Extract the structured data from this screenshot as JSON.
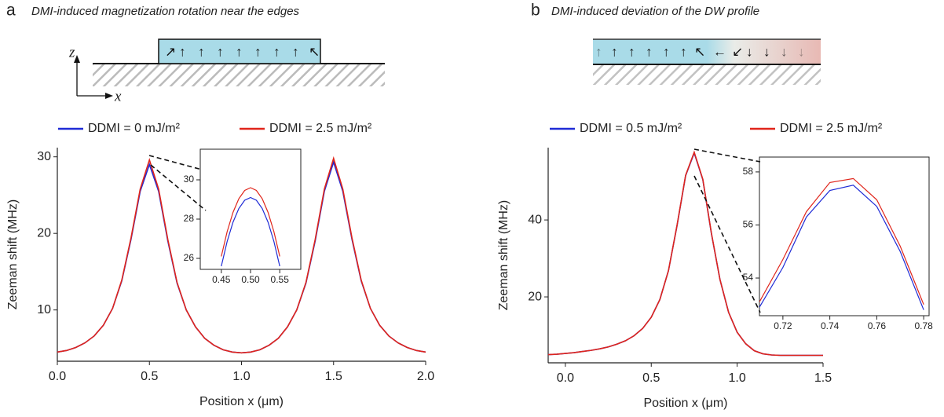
{
  "chart_data": [
    {
      "type": "line",
      "panel_label": "a",
      "title": "DMI-induced magnetization rotation near the edges",
      "schematic_axes": [
        "z",
        "x"
      ],
      "x_label": "Position x (μm)",
      "y_label": "Zeeman shift (MHz)",
      "xlim": [
        0,
        2
      ],
      "ylim": [
        3.3,
        31.2
      ],
      "xticks": [
        {
          "value": 0,
          "label": "0.0"
        },
        0.5,
        {
          "value": 1,
          "label": "1.0"
        },
        1.5,
        {
          "value": 2,
          "label": "2.0"
        }
      ],
      "yticks": [
        10,
        20,
        30
      ],
      "x": [
        0,
        0.05,
        0.1,
        0.15,
        0.2,
        0.25,
        0.3,
        0.35,
        0.4,
        0.45,
        0.5,
        0.55,
        0.6,
        0.65,
        0.7,
        0.75,
        0.8,
        0.85,
        0.9,
        0.95,
        1.0,
        1.05,
        1.1,
        1.15,
        1.2,
        1.25,
        1.3,
        1.35,
        1.4,
        1.45,
        1.5,
        1.55,
        1.6,
        1.65,
        1.7,
        1.75,
        1.8,
        1.85,
        1.9,
        1.95,
        2.0
      ],
      "series": [
        {
          "name": "DDMI = 0 mJ/m²",
          "color": "#1f2bd6",
          "values": [
            4.5,
            4.7,
            5.1,
            5.7,
            6.6,
            8.0,
            10.2,
            13.8,
            19.2,
            25.5,
            29.0,
            25.5,
            19.0,
            13.5,
            10.0,
            7.8,
            6.3,
            5.4,
            4.8,
            4.5,
            4.4,
            4.5,
            4.8,
            5.4,
            6.3,
            7.8,
            10.0,
            13.5,
            19.0,
            25.5,
            29.3,
            25.5,
            19.2,
            13.8,
            10.2,
            8.0,
            6.6,
            5.7,
            5.1,
            4.7,
            4.5
          ]
        },
        {
          "name": "DDMI = 2.5 mJ/m²",
          "color": "#e0251b",
          "values": [
            4.5,
            4.7,
            5.1,
            5.7,
            6.6,
            8.0,
            10.2,
            13.9,
            19.4,
            25.8,
            29.6,
            25.8,
            19.2,
            13.6,
            10.0,
            7.8,
            6.3,
            5.4,
            4.8,
            4.5,
            4.4,
            4.5,
            4.8,
            5.4,
            6.3,
            7.8,
            10.0,
            13.6,
            19.2,
            25.8,
            29.8,
            25.8,
            19.4,
            13.9,
            10.2,
            8.0,
            6.6,
            5.7,
            5.1,
            4.7,
            4.5
          ]
        }
      ]
    },
    {
      "type": "line",
      "xlim": [
        0.414,
        0.586
      ],
      "ylim": [
        25.44,
        31.56
      ],
      "xticks": [
        0.45,
        {
          "value": 0.5,
          "label": "0.50"
        },
        0.55
      ],
      "yticks": [
        26,
        28,
        30
      ],
      "x": [
        0.45,
        0.46,
        0.47,
        0.48,
        0.49,
        0.5,
        0.51,
        0.52,
        0.53,
        0.54,
        0.55
      ],
      "series": [
        {
          "color": "#1f2bd6",
          "values": [
            25.6,
            26.86,
            27.84,
            28.54,
            28.96,
            29.1,
            28.96,
            28.54,
            27.84,
            26.86,
            25.6
          ]
        },
        {
          "color": "#e0251b",
          "values": [
            26.1,
            27.36,
            28.34,
            29.04,
            29.46,
            29.6,
            29.46,
            29.04,
            28.34,
            27.36,
            26.1
          ]
        }
      ]
    },
    {
      "type": "line",
      "panel_label": "b",
      "title": "DMI-induced deviation of the DW profile",
      "x_label": "Position x (μm)",
      "y_label": "Zeeman shift (MHz)",
      "xlim": [
        -0.1,
        1.5
      ],
      "ylim": [
        2.86,
        58.8
      ],
      "xticks": [
        {
          "value": 0,
          "label": "0.0"
        },
        0.5,
        {
          "value": 1,
          "label": "1.0"
        },
        1.5
      ],
      "yticks": [
        20,
        40
      ],
      "x": [
        -0.1,
        -0.05,
        0,
        0.05,
        0.1,
        0.15,
        0.2,
        0.25,
        0.3,
        0.35,
        0.4,
        0.45,
        0.5,
        0.55,
        0.6,
        0.65,
        0.7,
        0.75,
        0.8,
        0.85,
        0.9,
        0.95,
        1.0,
        1.05,
        1.1,
        1.15,
        1.2,
        1.25,
        1.3,
        1.35,
        1.4,
        1.45,
        1.5
      ],
      "series": [
        {
          "name": "DDMI = 0.5 mJ/m²",
          "color": "#1f2bd6",
          "values": [
            5.0,
            5.1,
            5.3,
            5.5,
            5.8,
            6.1,
            6.5,
            7.0,
            7.7,
            8.6,
            9.9,
            11.8,
            14.7,
            19.3,
            26.8,
            38.5,
            51.5,
            57.4,
            50.5,
            36.5,
            24.5,
            16.0,
            10.8,
            7.8,
            6.0,
            5.2,
            4.9,
            4.8,
            4.8,
            4.8,
            4.8,
            4.8,
            4.8
          ]
        },
        {
          "name": "DDMI = 2.5 mJ/m²",
          "color": "#e0251b",
          "values": [
            5.0,
            5.1,
            5.3,
            5.5,
            5.8,
            6.1,
            6.5,
            7.0,
            7.7,
            8.6,
            9.9,
            11.8,
            14.7,
            19.3,
            26.8,
            38.6,
            51.6,
            57.6,
            50.6,
            36.6,
            24.5,
            16.0,
            10.8,
            7.8,
            6.0,
            5.2,
            4.9,
            4.8,
            4.8,
            4.8,
            4.8,
            4.8,
            4.8
          ]
        }
      ]
    },
    {
      "type": "line",
      "xlim": [
        0.71,
        0.7823
      ],
      "ylim": [
        52.58,
        58.56
      ],
      "xticks": [
        0.72,
        0.74,
        0.76,
        0.78
      ],
      "yticks": [
        54,
        56,
        58
      ],
      "x": [
        0.71,
        0.72,
        0.73,
        0.74,
        0.75,
        0.76,
        0.77,
        0.78
      ],
      "series": [
        {
          "color": "#1f2bd6",
          "values": [
            52.9,
            54.4,
            56.3,
            57.3,
            57.5,
            56.7,
            55.0,
            52.8
          ]
        },
        {
          "color": "#e0251b",
          "values": [
            53.1,
            54.7,
            56.5,
            57.6,
            57.75,
            56.95,
            55.2,
            53.0
          ]
        }
      ]
    }
  ]
}
